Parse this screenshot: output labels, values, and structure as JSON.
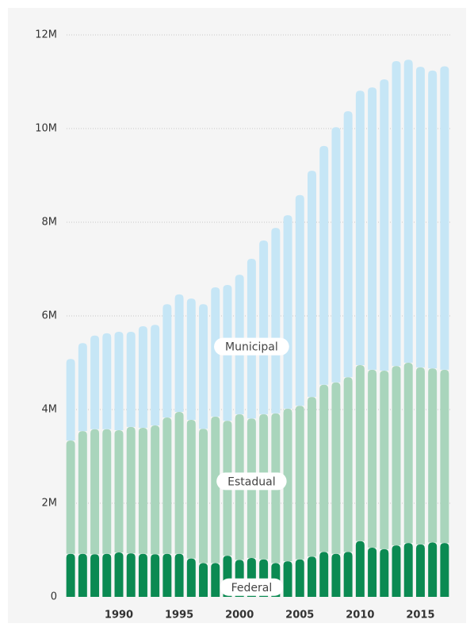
{
  "chart_data": {
    "type": "stacked_bar",
    "x": [
      1986,
      1987,
      1988,
      1989,
      1990,
      1991,
      1992,
      1993,
      1994,
      1995,
      1996,
      1997,
      1998,
      1999,
      2000,
      2001,
      2002,
      2003,
      2004,
      2005,
      2006,
      2007,
      2008,
      2009,
      2010,
      2011,
      2012,
      2013,
      2014,
      2015,
      2016,
      2017
    ],
    "xlim": [
      1985.4,
      2017.6
    ],
    "xticks": [
      1990,
      1995,
      2000,
      2005,
      2010,
      2015
    ],
    "ylim": [
      0,
      12
    ],
    "yticks": [
      0,
      {
        "value": 2,
        "label": "2M"
      },
      {
        "value": 4,
        "label": "4M"
      },
      {
        "value": 6,
        "label": "6M"
      },
      {
        "value": 8,
        "label": "8M"
      },
      {
        "value": 10,
        "label": "10M"
      },
      {
        "value": 12,
        "label": "12M"
      }
    ],
    "grid": true,
    "series": [
      {
        "name": "Federal",
        "color": "#0b8a52",
        "values": [
          0.92,
          0.92,
          0.91,
          0.92,
          0.95,
          0.93,
          0.92,
          0.91,
          0.92,
          0.92,
          0.82,
          0.72,
          0.72,
          0.88,
          0.79,
          0.83,
          0.8,
          0.72,
          0.76,
          0.8,
          0.86,
          0.96,
          0.92,
          0.96,
          1.19,
          1.05,
          1.02,
          1.1,
          1.15,
          1.12,
          1.16,
          1.15
        ]
      },
      {
        "name": "Estadual",
        "color": "#a9d5bc",
        "values": [
          2.42,
          2.62,
          2.67,
          2.66,
          2.61,
          2.7,
          2.69,
          2.75,
          2.91,
          3.03,
          2.96,
          2.87,
          3.13,
          2.88,
          3.11,
          2.98,
          3.1,
          3.2,
          3.26,
          3.28,
          3.41,
          3.57,
          3.66,
          3.73,
          3.76,
          3.8,
          3.81,
          3.83,
          3.85,
          3.78,
          3.72,
          3.7
        ]
      },
      {
        "name": "Municipal",
        "color": "#c6e6f6",
        "values": [
          1.74,
          1.88,
          2.0,
          2.05,
          2.1,
          2.03,
          2.17,
          2.15,
          2.42,
          2.51,
          2.59,
          2.66,
          2.76,
          2.9,
          2.98,
          3.41,
          3.71,
          3.96,
          4.13,
          4.5,
          4.83,
          5.1,
          5.45,
          5.68,
          5.86,
          6.03,
          6.22,
          6.51,
          6.47,
          6.42,
          6.36,
          6.48
        ]
      }
    ]
  }
}
